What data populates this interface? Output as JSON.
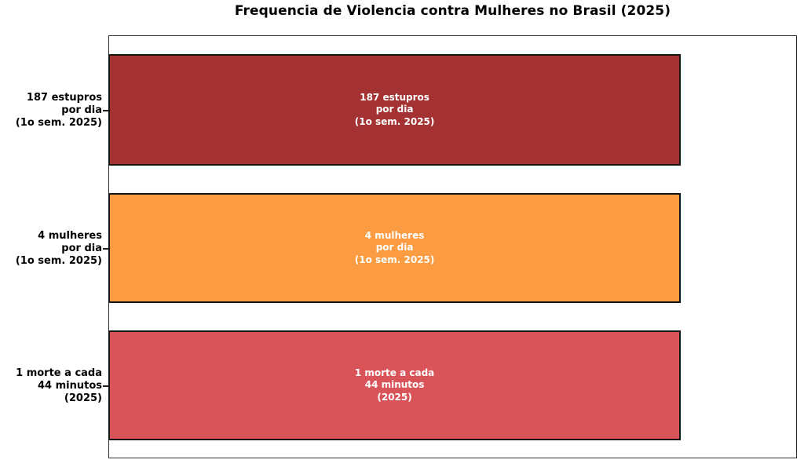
{
  "chart_data": {
    "type": "bar",
    "orientation": "horizontal",
    "title": "Frequencia de Violencia contra Mulheres no Brasil (2025)",
    "categories": [
      "187 estupros por dia (1o sem. 2025)",
      "4 mulheres por dia (1o sem. 2025)",
      "1 morte a cada 44 minutos (2025)"
    ],
    "values": [
      1,
      1,
      1
    ],
    "xlim": [
      0,
      1.2
    ],
    "xlabel": "",
    "ylabel": "",
    "grid": false,
    "legend": null,
    "x_axis_ticks": "hidden",
    "colors": [
      "#A53232",
      "#FB9C42",
      "#D95459"
    ],
    "bar_border_color": "#141414",
    "spine_color": "#2e2e2e",
    "bar_label_color": "#ffffff",
    "bars": [
      {
        "lines": [
          "187 estupros",
          "por dia",
          "(1o sem. 2025)"
        ]
      },
      {
        "lines": [
          "4 mulheres",
          "por dia",
          "(1o sem. 2025)"
        ]
      },
      {
        "lines": [
          "1 morte a cada",
          "44 minutos",
          "(2025)"
        ]
      }
    ]
  }
}
